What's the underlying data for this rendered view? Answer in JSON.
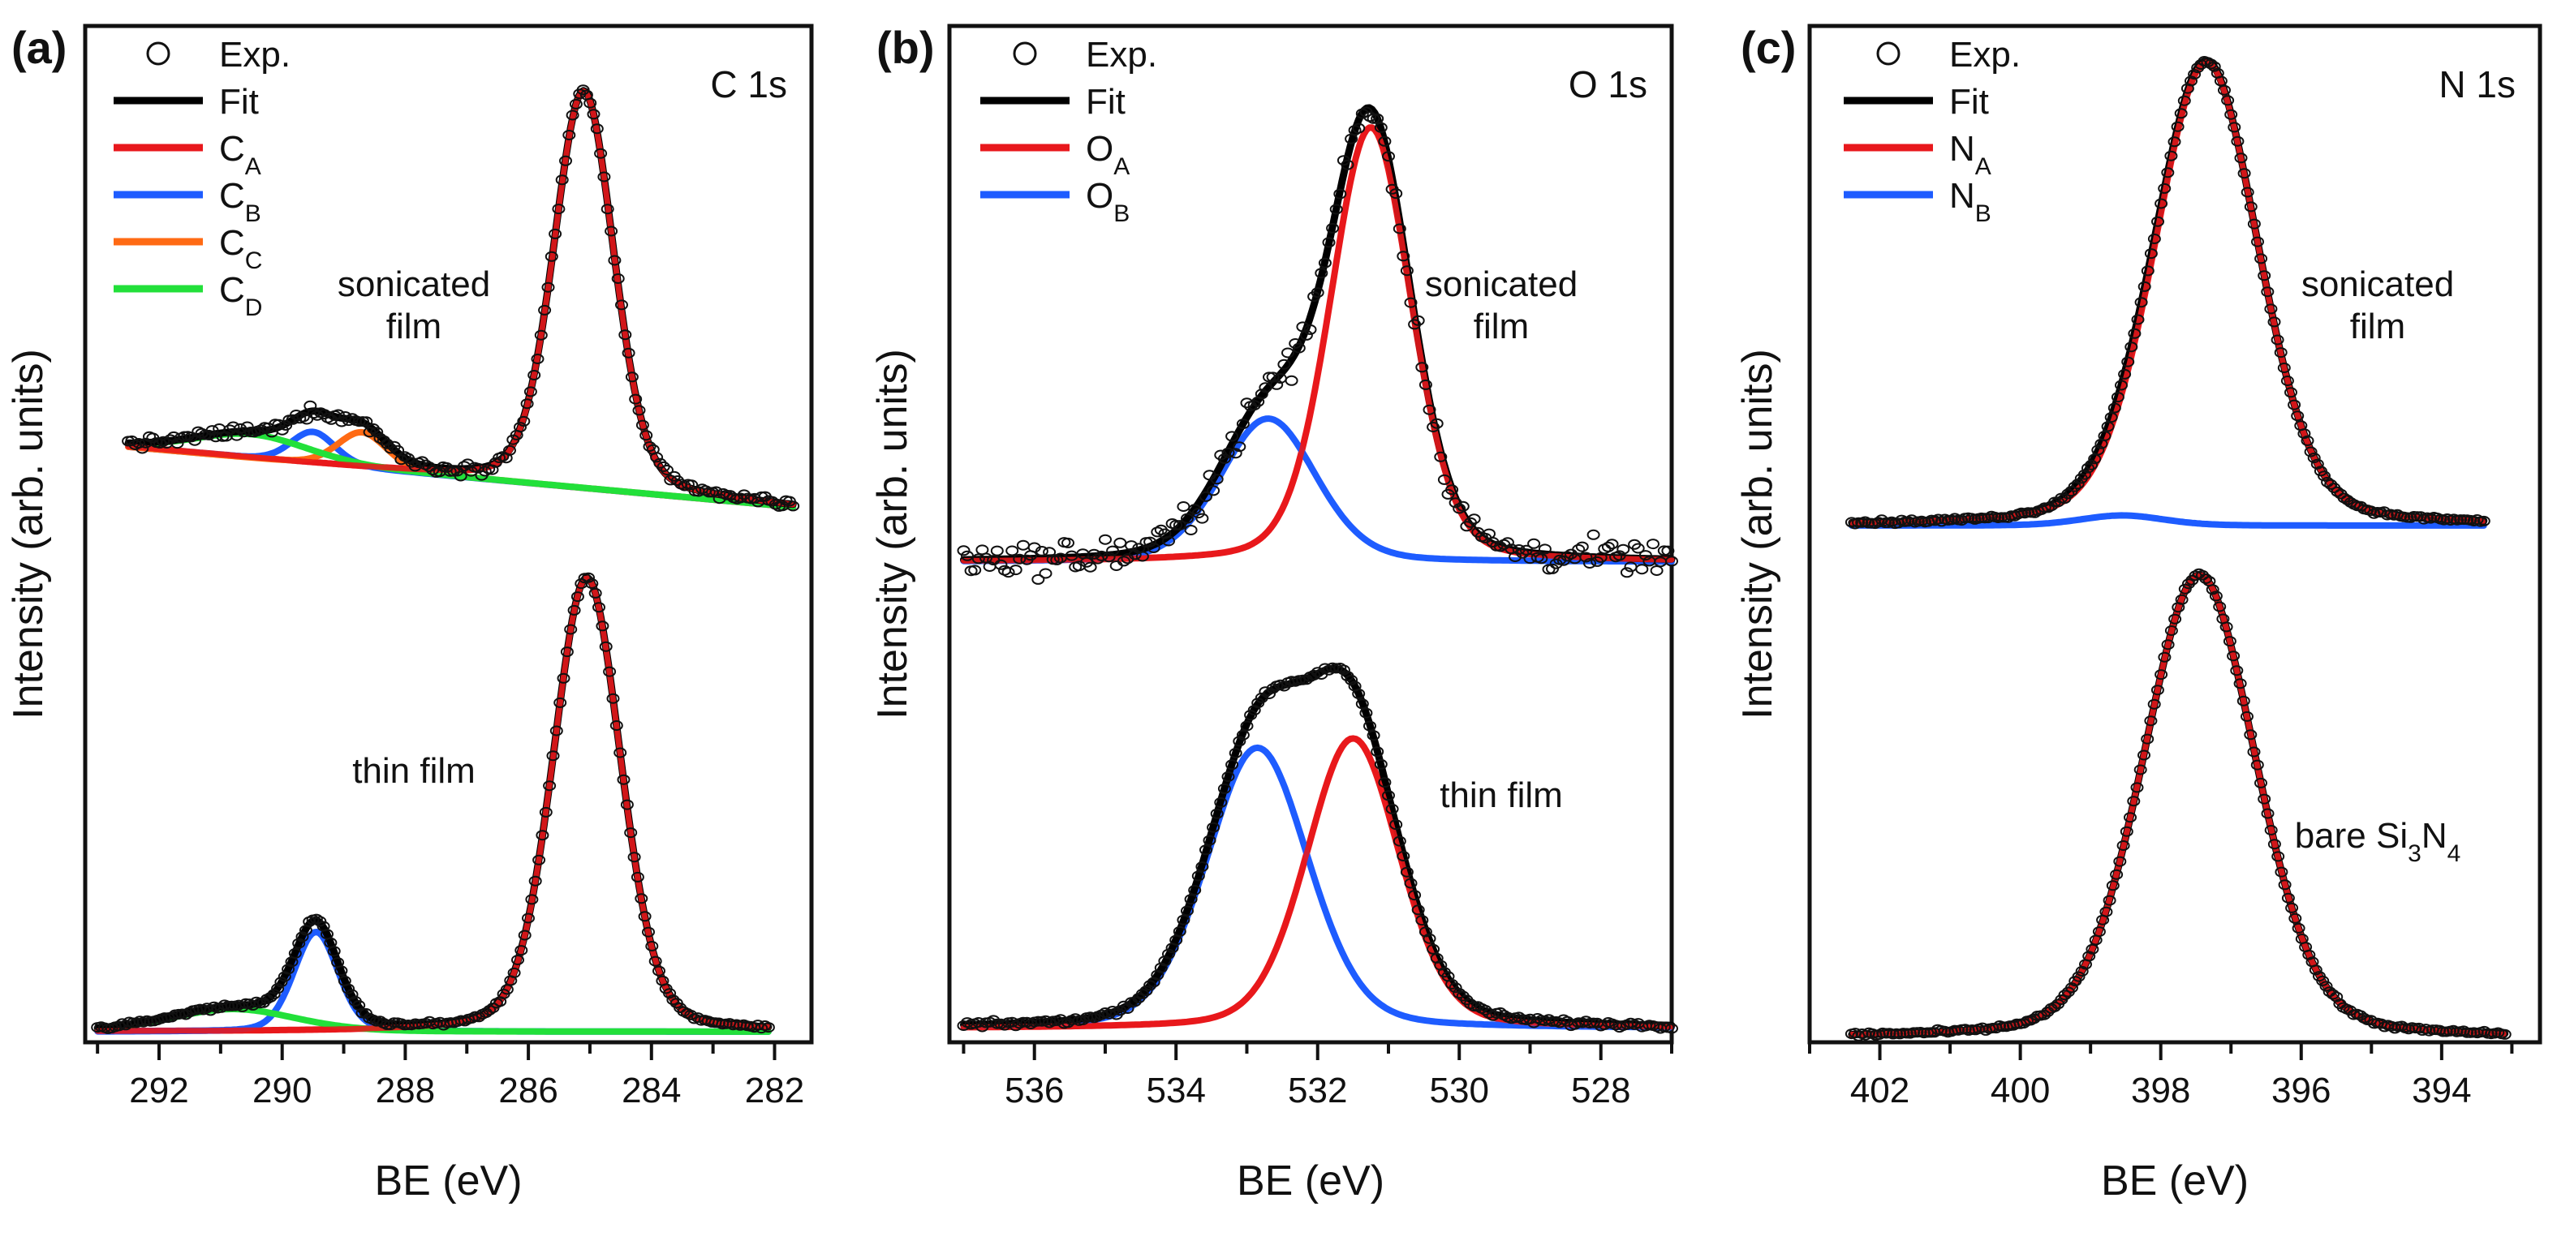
{
  "chart_data": [
    {
      "type": "line",
      "panel_label": "(a)",
      "core_level": "C 1s",
      "xlabel": "BE (eV)",
      "ylabel": "Intensity (arb. units)",
      "xlim": [
        293.2,
        281.4
      ],
      "x_ticks": [
        292,
        290,
        288,
        286,
        284,
        282
      ],
      "legend": [
        {
          "label": "Exp.",
          "sub": "",
          "kind": "marker",
          "color": "#111111"
        },
        {
          "label": "Fit",
          "sub": "",
          "kind": "line",
          "color": "#000000"
        },
        {
          "label": "C",
          "sub": "A",
          "kind": "line",
          "color": "#e8181c"
        },
        {
          "label": "C",
          "sub": "B",
          "kind": "line",
          "color": "#1e5cff"
        },
        {
          "label": "C",
          "sub": "C",
          "kind": "line",
          "color": "#ff6a14"
        },
        {
          "label": "C",
          "sub": "D",
          "kind": "line",
          "color": "#22e03a"
        }
      ],
      "spectra": [
        {
          "label_lines": [
            "sonicated",
            "film"
          ],
          "offset": 0.52,
          "amplitude": 0.42,
          "range": [
            292.5,
            281.7
          ],
          "noise": 0.012,
          "baseline_slope": 0.014,
          "components": [
            {
              "name": "C_A",
              "center": 285.1,
              "fwhm": 1.15,
              "height": 1.0,
              "color": "#e8181c"
            },
            {
              "name": "C_B",
              "center": 289.5,
              "fwhm": 0.85,
              "height": 0.08,
              "color": "#1e5cff"
            },
            {
              "name": "C_C",
              "center": 288.7,
              "fwhm": 0.95,
              "height": 0.09,
              "color": "#ff6a14"
            },
            {
              "name": "C_D",
              "center": 290.5,
              "fwhm": 2.2,
              "height": 0.06,
              "color": "#22e03a"
            }
          ]
        },
        {
          "label_lines": [
            "thin film"
          ],
          "offset": 0.0,
          "amplitude": 0.48,
          "range": [
            293.0,
            282.1
          ],
          "noise": 0.004,
          "baseline_slope": 0.0,
          "components": [
            {
              "name": "C_A",
              "center": 285.05,
              "fwhm": 1.3,
              "height": 1.0,
              "color": "#e8181c"
            },
            {
              "name": "C_B",
              "center": 289.45,
              "fwhm": 0.85,
              "height": 0.22,
              "color": "#1e5cff"
            },
            {
              "name": "C_D",
              "center": 290.8,
              "fwhm": 2.4,
              "height": 0.05,
              "color": "#22e03a"
            }
          ]
        }
      ]
    },
    {
      "type": "line",
      "panel_label": "(b)",
      "core_level": "O 1s",
      "xlabel": "BE (eV)",
      "ylabel": "Intensity (arb. units)",
      "xlim": [
        537.2,
        527.0
      ],
      "x_ticks": [
        536,
        534,
        532,
        530,
        528
      ],
      "legend": [
        {
          "label": "Exp.",
          "sub": "",
          "kind": "marker",
          "color": "#111111"
        },
        {
          "label": "Fit",
          "sub": "",
          "kind": "line",
          "color": "#000000"
        },
        {
          "label": "O",
          "sub": "A",
          "kind": "line",
          "color": "#e8181c"
        },
        {
          "label": "O",
          "sub": "B",
          "kind": "line",
          "color": "#1e5cff"
        }
      ],
      "spectra": [
        {
          "label_lines": [
            "sonicated",
            "film"
          ],
          "offset": 0.49,
          "amplitude": 0.46,
          "range": [
            537.0,
            527.0
          ],
          "noise": 0.035,
          "baseline_slope": 0.0,
          "components": [
            {
              "name": "O_A",
              "center": 531.25,
              "fwhm": 1.35,
              "height": 1.0,
              "color": "#e8181c"
            },
            {
              "name": "O_B",
              "center": 532.7,
              "fwhm": 1.6,
              "height": 0.33,
              "color": "#1e5cff"
            }
          ]
        },
        {
          "label_lines": [
            "thin film"
          ],
          "offset": 0.0,
          "amplitude": 0.33,
          "range": [
            537.0,
            527.0
          ],
          "noise": 0.006,
          "baseline_slope": 0.0,
          "components": [
            {
              "name": "O_A",
              "center": 531.5,
              "fwhm": 1.55,
              "height": 0.93,
              "color": "#e8181c"
            },
            {
              "name": "O_B",
              "center": 532.85,
              "fwhm": 1.7,
              "height": 0.9,
              "color": "#1e5cff"
            }
          ]
        }
      ]
    },
    {
      "type": "line",
      "panel_label": "(c)",
      "core_level": "N 1s",
      "xlabel": "BE (eV)",
      "ylabel": "Intensity (arb. units)",
      "xlim": [
        403.0,
        392.6
      ],
      "x_ticks": [
        402,
        400,
        398,
        396,
        394
      ],
      "legend": [
        {
          "label": "Exp.",
          "sub": "",
          "kind": "marker",
          "color": "#111111"
        },
        {
          "label": "Fit",
          "sub": "",
          "kind": "line",
          "color": "#000000"
        },
        {
          "label": "N",
          "sub": "A",
          "kind": "line",
          "color": "#e8181c"
        },
        {
          "label": "N",
          "sub": "B",
          "kind": "line",
          "color": "#1e5cff"
        }
      ],
      "spectra": [
        {
          "label_lines": [
            "sonicated",
            "film"
          ],
          "offset": 0.5,
          "amplitude": 0.49,
          "range": [
            402.4,
            393.4
          ],
          "noise": 0.004,
          "baseline_slope": 0.0,
          "components": [
            {
              "name": "N_A",
              "center": 397.35,
              "fwhm": 1.75,
              "height": 1.0,
              "color": "#e8181c"
            },
            {
              "name": "N_B",
              "center": 398.55,
              "fwhm": 1.4,
              "height": 0.022,
              "color": "#1e5cff"
            }
          ]
        },
        {
          "label_lines": [
            "bare Si3N4"
          ],
          "offset": 0.0,
          "amplitude": 0.49,
          "range": [
            402.4,
            393.1
          ],
          "noise": 0.004,
          "baseline_slope": 0.0,
          "components": [
            {
              "name": "N_A",
              "center": 397.45,
              "fwhm": 1.9,
              "height": 1.0,
              "color": "#e8181c"
            }
          ]
        }
      ]
    }
  ]
}
